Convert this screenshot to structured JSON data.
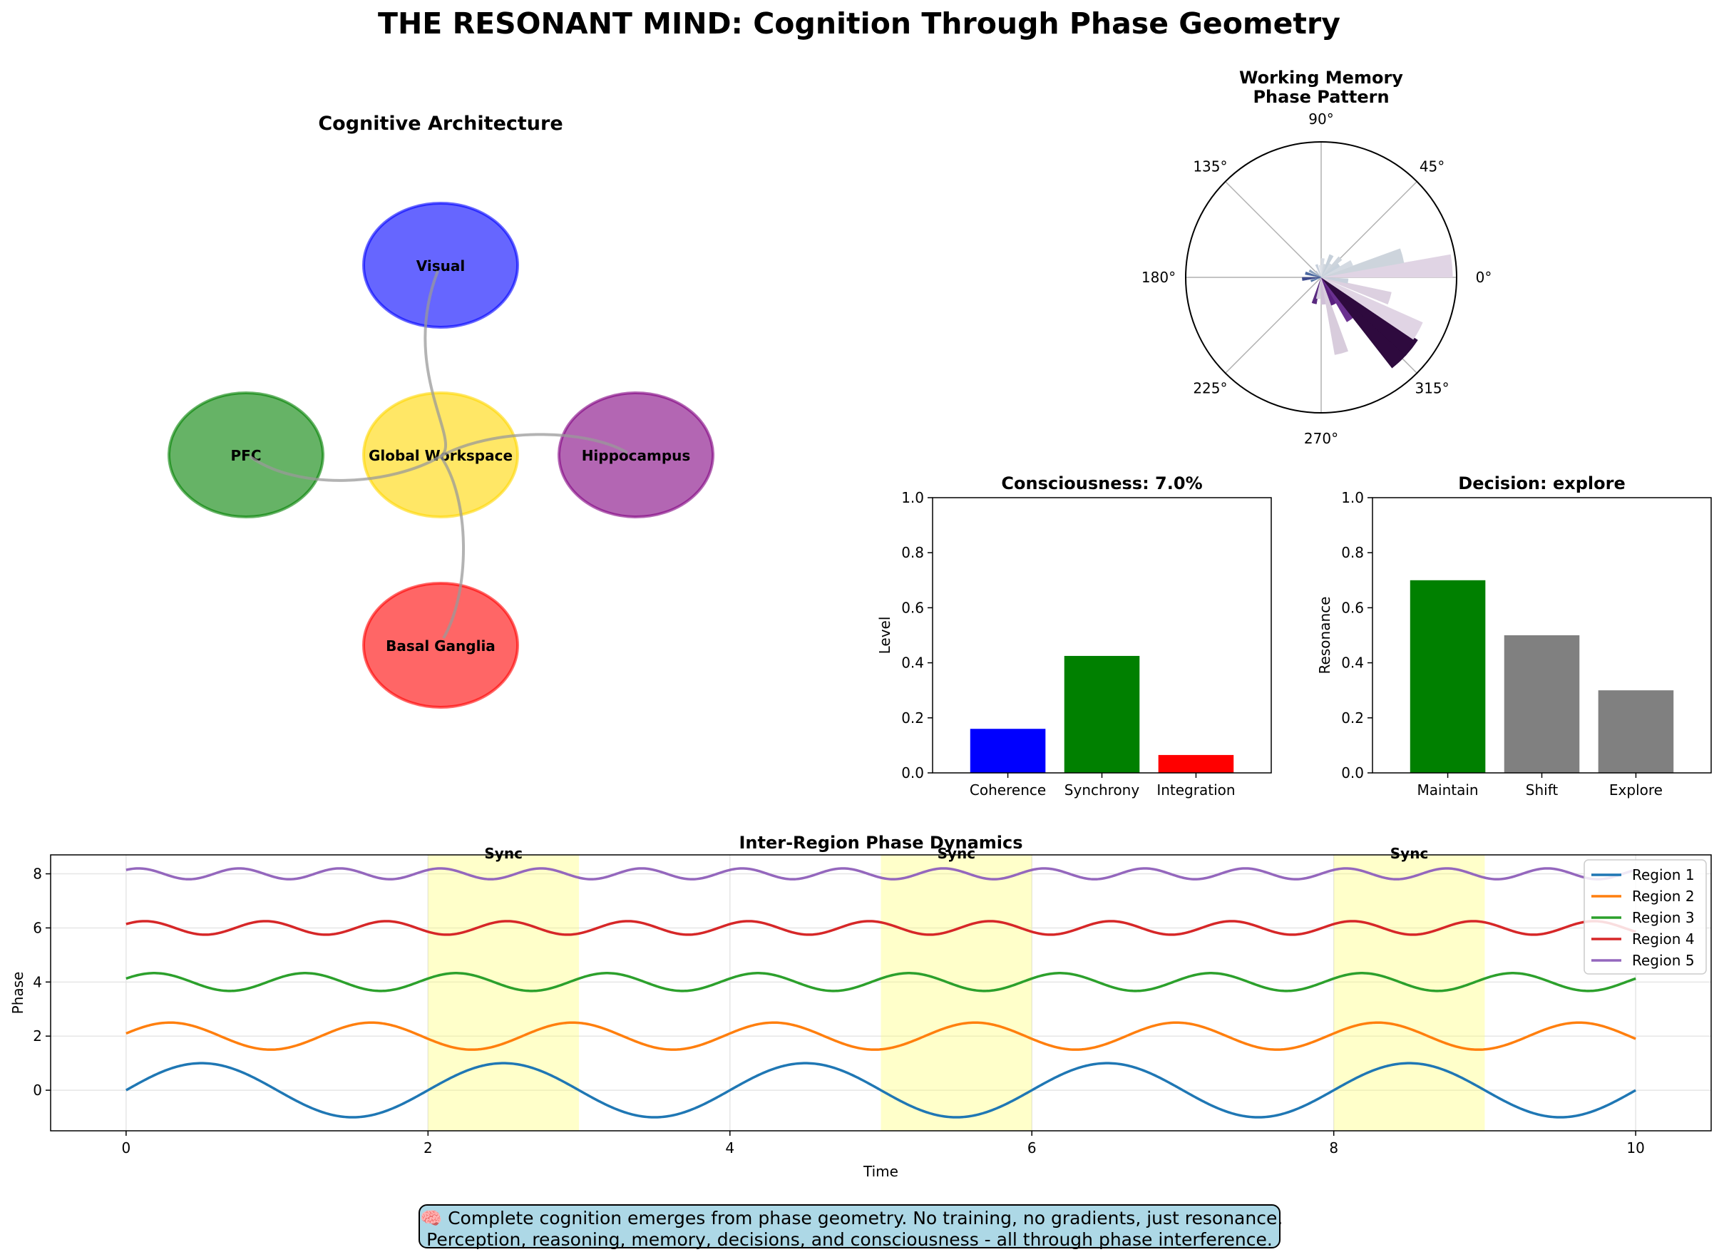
{
  "title": "THE RESONANT MIND: Cognition Through Phase Geometry",
  "architecture": {
    "title": "Cognitive Architecture",
    "nodes": [
      {
        "label": "Visual",
        "color": "#0000ff"
      },
      {
        "label": "PFC",
        "color": "#008000"
      },
      {
        "label": "Global Workspace",
        "color": "#ffd700"
      },
      {
        "label": "Hippocampus",
        "color": "#800080"
      },
      {
        "label": "Basal Ganglia",
        "color": "#ff0000"
      }
    ],
    "edge_color": "#999999"
  },
  "footer": {
    "line1": "🧠 Complete cognition emerges from phase geometry. No training, no gradients, just resonance.",
    "line2": "Perception, reasoning, memory, decisions, and consciousness - all through phase interference."
  },
  "chart_data": [
    {
      "type": "polar_bar",
      "title": "Working Memory\nPhase Pattern",
      "theta_tick_labels": [
        "0°",
        "45°",
        "90°",
        "135°",
        "180°",
        "225°",
        "270°",
        "315°"
      ],
      "bins": [
        {
          "angle_deg": 5,
          "r": 0.97,
          "color": "#e0d4e4"
        },
        {
          "angle_deg": 15,
          "r": 0.62,
          "color": "#cdd4dc"
        },
        {
          "angle_deg": 25,
          "r": 0.25,
          "color": "#d4dae2"
        },
        {
          "angle_deg": 35,
          "r": 0.16,
          "color": "#c8d2dc"
        },
        {
          "angle_deg": 45,
          "r": 0.2,
          "color": "#cdd4dc"
        },
        {
          "angle_deg": 55,
          "r": 0.12,
          "color": "#d2d8e0"
        },
        {
          "angle_deg": 65,
          "r": 0.18,
          "color": "#c6d0da"
        },
        {
          "angle_deg": 75,
          "r": 0.1,
          "color": "#d0d6de"
        },
        {
          "angle_deg": 85,
          "r": 0.14,
          "color": "#d8dde4"
        },
        {
          "angle_deg": 95,
          "r": 0.09,
          "color": "#dfe2e8"
        },
        {
          "angle_deg": 110,
          "r": 0.1,
          "color": "#c8d0dc"
        },
        {
          "angle_deg": 130,
          "r": 0.06,
          "color": "#bcc6d4"
        },
        {
          "angle_deg": 150,
          "r": 0.1,
          "color": "#8aa0bc"
        },
        {
          "angle_deg": 165,
          "r": 0.12,
          "color": "#4a68a0"
        },
        {
          "angle_deg": 185,
          "r": 0.14,
          "color": "#3e4a8c"
        },
        {
          "angle_deg": 200,
          "r": 0.08,
          "color": "#5a7aa8"
        },
        {
          "angle_deg": 255,
          "r": 0.2,
          "color": "#5a2a80"
        },
        {
          "angle_deg": 262,
          "r": 0.16,
          "color": "#d8d0e0"
        },
        {
          "angle_deg": 275,
          "r": 0.2,
          "color": "#d0c0d8"
        },
        {
          "angle_deg": 285,
          "r": 0.58,
          "color": "#d8ccdc"
        },
        {
          "angle_deg": 295,
          "r": 0.22,
          "color": "#5a2080"
        },
        {
          "angle_deg": 305,
          "r": 0.38,
          "color": "#6a3090"
        },
        {
          "angle_deg": 313,
          "r": 0.85,
          "color": "#2e0a3e"
        },
        {
          "angle_deg": 322,
          "r": 0.85,
          "color": "#2e0a3e"
        },
        {
          "angle_deg": 331,
          "r": 0.82,
          "color": "#e0d4e4"
        },
        {
          "angle_deg": 343,
          "r": 0.53,
          "color": "#dcd0e0"
        },
        {
          "angle_deg": 352,
          "r": 0.2,
          "color": "#c8d0dc"
        }
      ],
      "r_max": 1.0
    },
    {
      "type": "bar",
      "title": "Consciousness: 7.0%",
      "ylabel": "Level",
      "categories": [
        "Coherence",
        "Synchrony",
        "Integration"
      ],
      "values": [
        0.16,
        0.425,
        0.065
      ],
      "colors": [
        "#0000ff",
        "#008000",
        "#ff0000"
      ],
      "ylim": [
        0,
        1.0
      ],
      "yticks": [
        "0.0",
        "0.2",
        "0.4",
        "0.6",
        "0.8",
        "1.0"
      ]
    },
    {
      "type": "bar",
      "title": "Decision: explore",
      "ylabel": "Resonance",
      "categories": [
        "Maintain",
        "Shift",
        "Explore"
      ],
      "values": [
        0.7,
        0.5,
        0.3
      ],
      "colors": [
        "#008000",
        "#808080",
        "#808080"
      ],
      "ylim": [
        0,
        1.0
      ],
      "yticks": [
        "0.0",
        "0.2",
        "0.4",
        "0.6",
        "0.8",
        "1.0"
      ]
    },
    {
      "type": "line",
      "title": "Inter-Region Phase Dynamics",
      "xlabel": "Time",
      "ylabel": "Phase",
      "xlim": [
        -0.5,
        10.5
      ],
      "ylim": [
        -1.5,
        8.7
      ],
      "xticks": [
        "0",
        "2",
        "4",
        "6",
        "8",
        "10"
      ],
      "yticks": [
        "0",
        "2",
        "4",
        "6",
        "8"
      ],
      "grid": true,
      "legend_position": "upper right",
      "sync_windows": [
        {
          "start": 2,
          "end": 3,
          "label": "Sync"
        },
        {
          "start": 5,
          "end": 6,
          "label": "Sync"
        },
        {
          "start": 8,
          "end": 9,
          "label": "Sync"
        }
      ],
      "series": [
        {
          "name": "Region 1",
          "color": "#1f77b4",
          "offset": 0,
          "amplitude": 1.0,
          "frequency": 0.5,
          "phase": 0
        },
        {
          "name": "Region 2",
          "color": "#ff7f0e",
          "offset": 2,
          "amplitude": 0.5,
          "frequency": 0.75,
          "phase": 0.2
        },
        {
          "name": "Region 3",
          "color": "#2ca02c",
          "offset": 4,
          "amplitude": 0.33,
          "frequency": 1.0,
          "phase": 0.4
        },
        {
          "name": "Region 4",
          "color": "#d62728",
          "offset": 6,
          "amplitude": 0.25,
          "frequency": 1.25,
          "phase": 0.6
        },
        {
          "name": "Region 5",
          "color": "#9467bd",
          "offset": 8,
          "amplitude": 0.2,
          "frequency": 1.5,
          "phase": 0.8
        }
      ]
    }
  ]
}
